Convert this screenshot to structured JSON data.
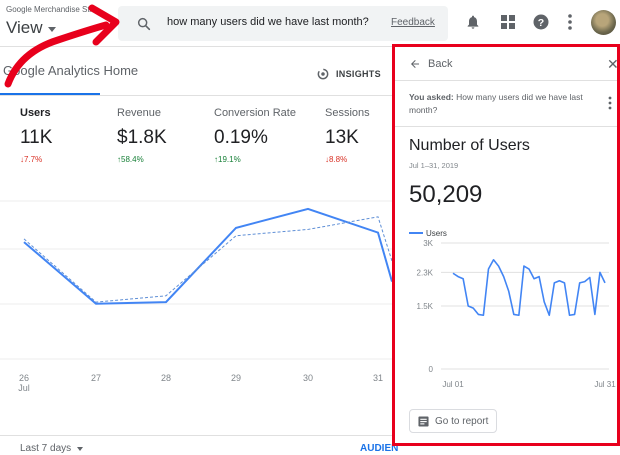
{
  "topbar": {
    "account_small": "Google Merchandise St...",
    "view_label": "View",
    "search_query": "how many users did we have last month?",
    "feedback_label": "Feedback",
    "icons": [
      "bell-icon",
      "apps-grid-icon",
      "help-icon",
      "more-vert-icon"
    ]
  },
  "home": {
    "tab_label": "Google Analytics Home",
    "insights_label": "INSIGHTS",
    "metrics": [
      {
        "name": "Users",
        "value": "11K",
        "delta": "7.7%",
        "direction": "down"
      },
      {
        "name": "Revenue",
        "value": "$1.8K",
        "delta": "58.4%",
        "direction": "up"
      },
      {
        "name": "Conversion Rate",
        "value": "0.19%",
        "delta": "19.1%",
        "direction": "up"
      },
      {
        "name": "Sessions",
        "value": "13K",
        "delta": "8.8%",
        "direction": "down"
      }
    ],
    "range_label": "Last 7 days",
    "audience_link": "AUDIEN",
    "chart_data": {
      "type": "line",
      "x_day_labels": [
        "26",
        "27",
        "28",
        "29",
        "30",
        "31"
      ],
      "x_month_label": "Jul",
      "series": [
        {
          "values": [
            0.74,
            0.35,
            0.36,
            0.83,
            0.95,
            0.8,
            0.49
          ]
        },
        {
          "values": [
            0.76,
            0.36,
            0.4,
            0.78,
            0.82,
            0.9,
            0.62
          ]
        }
      ]
    }
  },
  "panel": {
    "back_label": "Back",
    "close_label": "✕",
    "asked_prefix": "You asked:",
    "asked_question": "How many users did we have last month?",
    "card_title": "Number of Users",
    "card_date": "Jul 1–31, 2019",
    "big_number": "50,209",
    "goto_label": "Go to report",
    "chart_data": {
      "type": "line",
      "legend": "Users",
      "y_ticks": [
        "0",
        "1.5K",
        "2.3K",
        "3K"
      ],
      "y_tick_values": [
        0,
        1500,
        2300,
        3000
      ],
      "ylim": [
        0,
        3000
      ],
      "x_labels": [
        "Jul 01",
        "Jul 31"
      ],
      "x": [
        1,
        2,
        3,
        4,
        5,
        6,
        7,
        8,
        9,
        10,
        11,
        12,
        13,
        14,
        15,
        16,
        17,
        18,
        19,
        20,
        21,
        22,
        23,
        24,
        25,
        26,
        27,
        28,
        29,
        30,
        31
      ],
      "values": [
        2280,
        2200,
        2150,
        1500,
        1450,
        1300,
        1280,
        2380,
        2600,
        2450,
        2200,
        1850,
        1300,
        1280,
        2450,
        2380,
        2150,
        2200,
        1600,
        1280,
        2050,
        2100,
        2050,
        1280,
        1300,
        2050,
        2080,
        2180,
        1300,
        2300,
        2050
      ],
      "color": "#4285f4"
    }
  },
  "colors": {
    "accent": "#1a73e8",
    "highlight_box": "#e8001c",
    "annotation_arrow": "#e8001c",
    "down": "#d93025",
    "up": "#188038"
  }
}
